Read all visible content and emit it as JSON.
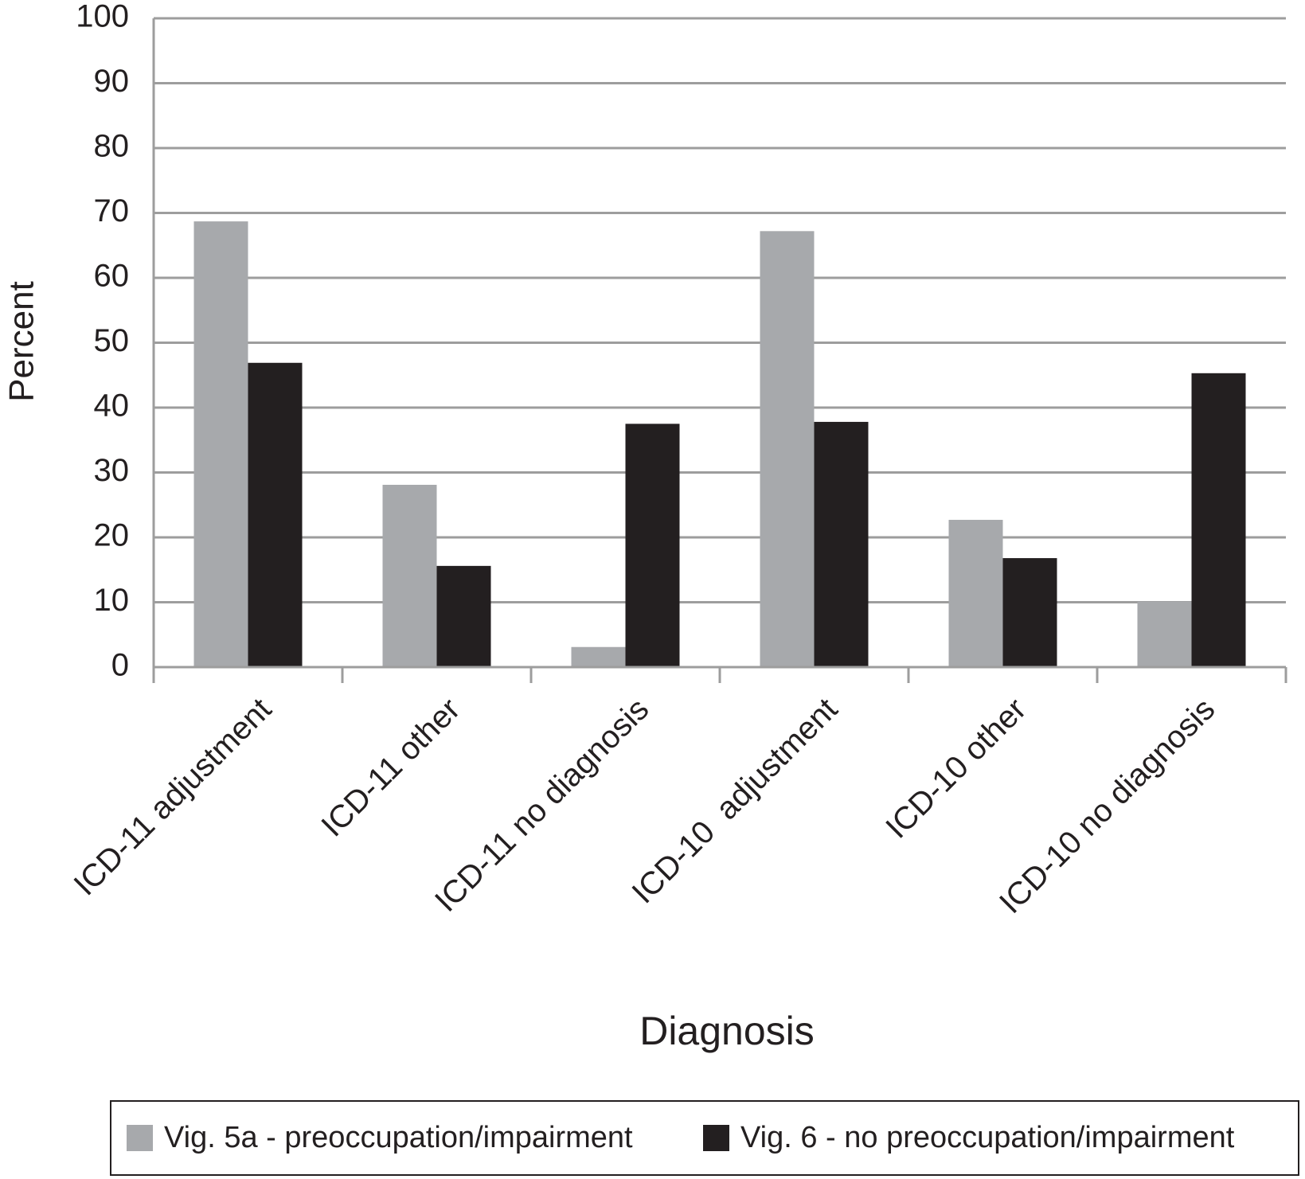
{
  "chart_data": {
    "type": "bar",
    "x_label": "Diagnosis",
    "y_label": "Percent",
    "categories": [
      "ICD-11 adjustment",
      "ICD-11 other",
      "ICD-11 no diagnosis",
      "ICD-10  adjustment",
      "ICD-10 other",
      "ICD-10 no diagnosis"
    ],
    "series": [
      {
        "name": "Vig. 5a - preoccupation/impairment",
        "color": "#a7a9ac",
        "values": [
          68.7,
          28.1,
          3.1,
          67.2,
          22.7,
          10.1
        ]
      },
      {
        "name": "Vig. 6 - no preoccupation/impairment",
        "color": "#231f20",
        "values": [
          46.9,
          15.6,
          37.5,
          37.8,
          16.8,
          45.3
        ]
      }
    ],
    "ylim": [
      0,
      100
    ],
    "yticks": [
      0,
      10,
      20,
      30,
      40,
      50,
      60,
      70,
      80,
      90,
      100
    ],
    "grid": true,
    "legend": "bottom"
  }
}
